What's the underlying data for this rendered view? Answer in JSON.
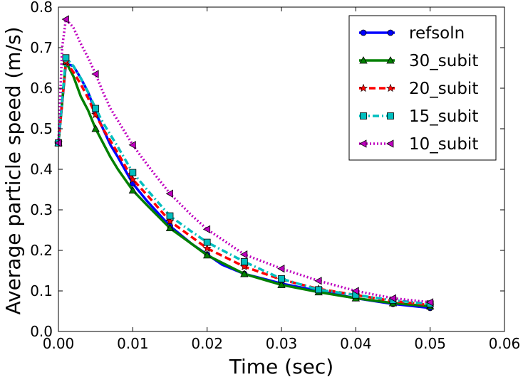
{
  "chart_data": {
    "type": "line",
    "title": "",
    "xlabel": "Time (sec)",
    "ylabel": "Average particle speed (m/s)",
    "xlim": [
      0.0,
      0.06
    ],
    "ylim": [
      0.0,
      0.8
    ],
    "xticks": [
      "0.00",
      "0.01",
      "0.02",
      "0.03",
      "0.04",
      "0.05",
      "0.06"
    ],
    "yticks": [
      "0.0",
      "0.1",
      "0.2",
      "0.3",
      "0.4",
      "0.5",
      "0.6",
      "0.7",
      "0.8"
    ],
    "legend_position": "top-right",
    "series": [
      {
        "name": "refsoln",
        "color": "#0000ff",
        "line": "solid",
        "marker": "circle",
        "x": [
          0.0,
          0.001,
          0.002,
          0.003,
          0.004,
          0.005,
          0.006,
          0.007,
          0.008,
          0.01,
          0.012,
          0.015,
          0.018,
          0.02,
          0.022,
          0.025,
          0.028,
          0.03,
          0.035,
          0.04,
          0.045,
          0.05
        ],
        "y": [
          0.465,
          0.66,
          0.655,
          0.625,
          0.59,
          0.54,
          0.5,
          0.46,
          0.43,
          0.365,
          0.32,
          0.26,
          0.215,
          0.19,
          0.165,
          0.142,
          0.128,
          0.118,
          0.1,
          0.082,
          0.068,
          0.058
        ],
        "marker_x": [
          0.0,
          0.005,
          0.01,
          0.015,
          0.02,
          0.025,
          0.03,
          0.035,
          0.04,
          0.045,
          0.05
        ],
        "marker_y": [
          0.465,
          0.54,
          0.365,
          0.26,
          0.19,
          0.142,
          0.118,
          0.1,
          0.082,
          0.068,
          0.058
        ]
      },
      {
        "name": "30_subit",
        "color": "#008000",
        "line": "solid",
        "marker": "triangle-up",
        "x": [
          0.0,
          0.001,
          0.002,
          0.003,
          0.004,
          0.005,
          0.006,
          0.007,
          0.008,
          0.01,
          0.012,
          0.015,
          0.018,
          0.02,
          0.025,
          0.03,
          0.035,
          0.04,
          0.045,
          0.05
        ],
        "y": [
          0.465,
          0.665,
          0.63,
          0.58,
          0.545,
          0.5,
          0.465,
          0.43,
          0.4,
          0.348,
          0.31,
          0.255,
          0.215,
          0.188,
          0.142,
          0.115,
          0.097,
          0.082,
          0.07,
          0.062
        ],
        "marker_x": [
          0.0,
          0.001,
          0.005,
          0.01,
          0.015,
          0.02,
          0.025,
          0.03,
          0.035,
          0.04,
          0.045,
          0.05
        ],
        "marker_y": [
          0.465,
          0.665,
          0.5,
          0.348,
          0.255,
          0.188,
          0.142,
          0.115,
          0.097,
          0.082,
          0.07,
          0.062
        ]
      },
      {
        "name": "20_subit",
        "color": "#ff0000",
        "line": "dashed",
        "marker": "star",
        "x": [
          0.0,
          0.001,
          0.002,
          0.003,
          0.004,
          0.005,
          0.006,
          0.007,
          0.008,
          0.01,
          0.012,
          0.015,
          0.018,
          0.02,
          0.025,
          0.03,
          0.035,
          0.04,
          0.045,
          0.05
        ],
        "y": [
          0.465,
          0.665,
          0.64,
          0.61,
          0.575,
          0.535,
          0.5,
          0.47,
          0.44,
          0.375,
          0.335,
          0.272,
          0.232,
          0.205,
          0.16,
          0.128,
          0.105,
          0.09,
          0.075,
          0.065
        ],
        "marker_x": [
          0.0,
          0.001,
          0.005,
          0.01,
          0.015,
          0.02,
          0.025,
          0.03,
          0.035,
          0.04,
          0.045,
          0.05
        ],
        "marker_y": [
          0.465,
          0.665,
          0.535,
          0.375,
          0.272,
          0.205,
          0.16,
          0.128,
          0.105,
          0.09,
          0.075,
          0.065
        ]
      },
      {
        "name": "15_subit",
        "color": "#00bfbf",
        "line": "dashdot",
        "marker": "square",
        "x": [
          0.0,
          0.001,
          0.002,
          0.003,
          0.004,
          0.005,
          0.006,
          0.007,
          0.008,
          0.01,
          0.012,
          0.015,
          0.018,
          0.02,
          0.025,
          0.03,
          0.035,
          0.04,
          0.045,
          0.05
        ],
        "y": [
          0.465,
          0.675,
          0.655,
          0.625,
          0.59,
          0.55,
          0.515,
          0.485,
          0.455,
          0.392,
          0.348,
          0.285,
          0.245,
          0.22,
          0.172,
          0.13,
          0.103,
          0.09,
          0.077,
          0.068
        ],
        "marker_x": [
          0.0,
          0.001,
          0.005,
          0.01,
          0.015,
          0.02,
          0.025,
          0.03,
          0.035,
          0.04,
          0.045,
          0.05
        ],
        "marker_y": [
          0.465,
          0.675,
          0.55,
          0.392,
          0.285,
          0.22,
          0.172,
          0.13,
          0.103,
          0.09,
          0.077,
          0.068
        ]
      },
      {
        "name": "10_subit",
        "color": "#bf00bf",
        "line": "dotted",
        "marker": "triangle-left",
        "x": [
          0.0,
          0.0005,
          0.001,
          0.002,
          0.003,
          0.004,
          0.005,
          0.006,
          0.007,
          0.008,
          0.01,
          0.012,
          0.015,
          0.018,
          0.02,
          0.025,
          0.03,
          0.035,
          0.04,
          0.045,
          0.05
        ],
        "y": [
          0.465,
          0.7,
          0.77,
          0.75,
          0.71,
          0.675,
          0.635,
          0.59,
          0.55,
          0.52,
          0.46,
          0.41,
          0.34,
          0.285,
          0.252,
          0.19,
          0.155,
          0.125,
          0.1,
          0.082,
          0.072
        ],
        "marker_x": [
          0.0,
          0.001,
          0.005,
          0.01,
          0.015,
          0.02,
          0.025,
          0.03,
          0.035,
          0.04,
          0.045,
          0.05
        ],
        "marker_y": [
          0.465,
          0.77,
          0.635,
          0.46,
          0.34,
          0.252,
          0.19,
          0.155,
          0.125,
          0.1,
          0.082,
          0.072
        ]
      }
    ]
  }
}
